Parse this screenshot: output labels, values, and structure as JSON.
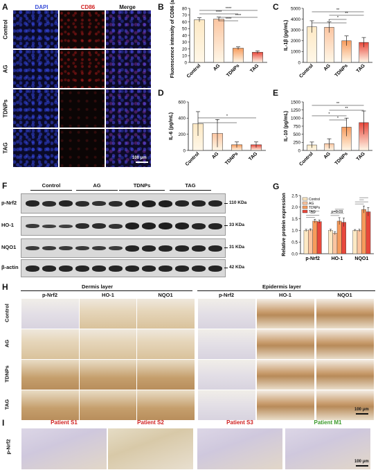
{
  "panels": {
    "A": "A",
    "B": "B",
    "C": "C",
    "D": "D",
    "E": "E",
    "F": "F",
    "G": "G",
    "H": "H",
    "I": "I"
  },
  "panelA": {
    "col_labels": [
      "DAPI",
      "CD86",
      "Merge"
    ],
    "col_colors": [
      "#3a4fd8",
      "#d02020",
      "#111111"
    ],
    "row_labels": [
      "Control",
      "AG",
      "TDNPs",
      "TAG"
    ],
    "scale_bar": "100 μm"
  },
  "groups": [
    "Control",
    "AG",
    "TDNPs",
    "TAG"
  ],
  "bar_colors": [
    "#fde9c4",
    "#fbc5a1",
    "#f79b5c",
    "#e8473b"
  ],
  "chart_data": [
    {
      "id": "B",
      "type": "bar",
      "categories": [
        "Control",
        "AG",
        "TDNPs",
        "TAG"
      ],
      "values": [
        63,
        64,
        21,
        15
      ],
      "errors": [
        3,
        3,
        2,
        2
      ],
      "ylabel": "Fluorescence intensity of CD86 (a.u.)",
      "ylim": [
        0,
        80
      ],
      "yticks": [
        0,
        10,
        20,
        30,
        40,
        50,
        60,
        70,
        80
      ],
      "sig": [
        "****",
        "****",
        "****",
        "****"
      ]
    },
    {
      "id": "C",
      "type": "bar",
      "categories": [
        "Control",
        "AG",
        "TDNPs",
        "TAG"
      ],
      "values": [
        3300,
        3250,
        2000,
        1850
      ],
      "errors": [
        550,
        500,
        450,
        450
      ],
      "ylabel": "IL-1β (pg/mL)",
      "ylim": [
        0,
        5000
      ],
      "yticks": [
        0,
        1000,
        2000,
        3000,
        4000,
        5000
      ],
      "sig": [
        "*",
        "**",
        "*",
        "**"
      ]
    },
    {
      "id": "D",
      "type": "bar",
      "categories": [
        "Control",
        "AG",
        "TDNPs",
        "TAG"
      ],
      "values": [
        330,
        210,
        70,
        70
      ],
      "errors": [
        150,
        170,
        35,
        35
      ],
      "ylabel": "IL-6 (pg/mL)",
      "ylim": [
        0,
        600
      ],
      "yticks": [
        0,
        200,
        400,
        600
      ],
      "sig": [
        "*",
        "*"
      ]
    },
    {
      "id": "E",
      "type": "bar",
      "categories": [
        "Control",
        "AG",
        "TDNPs",
        "TAG"
      ],
      "values": [
        170,
        210,
        720,
        860
      ],
      "errors": [
        90,
        150,
        280,
        360
      ],
      "ylabel": "IL-10 (pg/mL)",
      "ylim": [
        0,
        1500
      ],
      "yticks": [
        0,
        250,
        500,
        750,
        1000,
        1250,
        1500
      ],
      "sig": [
        "*",
        "*",
        "**",
        "**"
      ]
    },
    {
      "id": "G",
      "type": "bar",
      "categories": [
        "p-Nrf2",
        "HO-1",
        "NQO1"
      ],
      "series": [
        {
          "name": "Control",
          "values": [
            1.0,
            1.0,
            1.0
          ]
        },
        {
          "name": "AG",
          "values": [
            1.02,
            0.88,
            1.0
          ]
        },
        {
          "name": "TDNPs",
          "values": [
            1.4,
            1.4,
            1.9
          ]
        },
        {
          "name": "TAG",
          "values": [
            1.38,
            1.35,
            1.8
          ]
        }
      ],
      "errors": [
        [
          0.05,
          0.05,
          0.04
        ],
        [
          0.05,
          0.07,
          0.05
        ],
        [
          0.08,
          0.15,
          0.15
        ],
        [
          0.07,
          0.18,
          0.18
        ]
      ],
      "ylabel": "Relative protein expression",
      "ylim": [
        0,
        2.5
      ],
      "yticks": [
        0,
        0.5,
        1.0,
        1.5,
        2.0,
        2.5
      ],
      "annotation": "p=0.09"
    }
  ],
  "panelF": {
    "groups": [
      "Control",
      "AG",
      "TDNPs",
      "TAG"
    ],
    "rows": [
      {
        "name": "p-Nrf2",
        "kda": "110 KDa"
      },
      {
        "name": "HO-1",
        "kda": "33 KDa"
      },
      {
        "name": "NQO1",
        "kda": "31 KDa"
      },
      {
        "name": "β-actin",
        "kda": "42 KDa"
      }
    ]
  },
  "panelH": {
    "layer_labels": [
      "Dermis layer",
      "Epidermis layer"
    ],
    "col_labels": [
      "p-Nrf2",
      "HO-1",
      "NQO1",
      "p-Nrf2",
      "HO-1",
      "NQO1"
    ],
    "row_labels": [
      "Control",
      "AG",
      "TDNPs",
      "TAG"
    ],
    "scale_bar": "100 μm"
  },
  "panelI": {
    "patients": [
      "Patient S1",
      "Patient S2",
      "Patient S3",
      "Patient M1"
    ],
    "patient_colors": [
      "#d02020",
      "#d02020",
      "#d02020",
      "#3a9a2a"
    ],
    "row_label": "p-Nrf2",
    "scale_bar": "100 μm"
  }
}
